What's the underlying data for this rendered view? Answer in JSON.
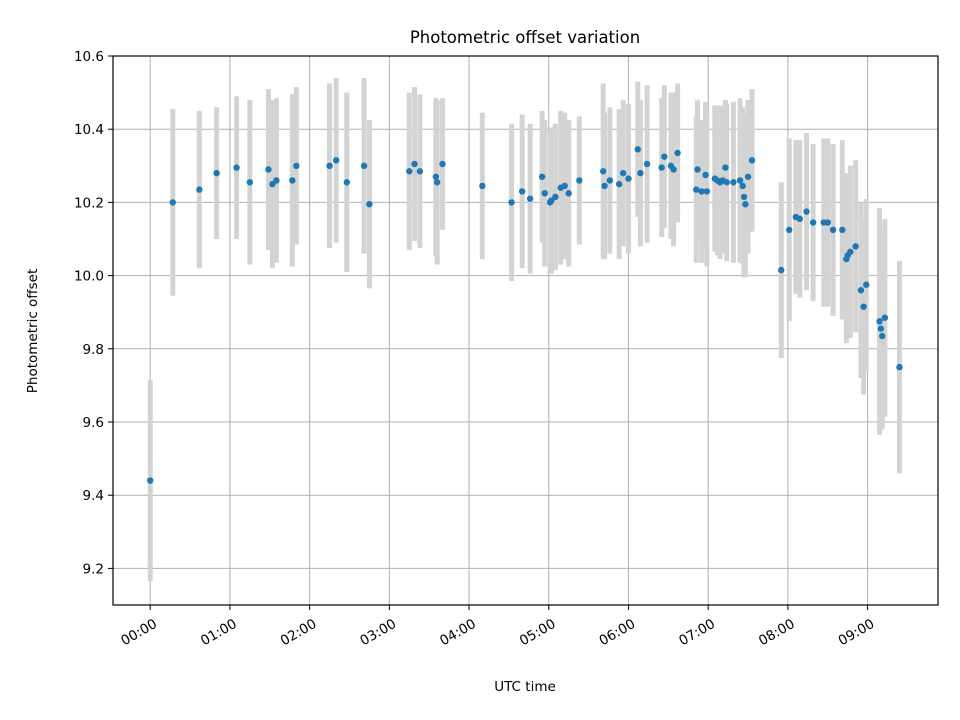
{
  "chart_data": {
    "type": "scatter",
    "title": "Photometric offset variation",
    "xlabel": "UTC time",
    "ylabel": "Photometric offset",
    "xlim": [
      "-00:28",
      "09:53"
    ],
    "ylim": [
      9.1,
      10.6
    ],
    "x_ticks": [
      "00:00",
      "01:00",
      "02:00",
      "03:00",
      "04:00",
      "05:00",
      "06:00",
      "07:00",
      "08:00",
      "09:00"
    ],
    "y_ticks": [
      "9.2",
      "9.4",
      "9.6",
      "9.8",
      "10.0",
      "10.2",
      "10.4",
      "10.6"
    ],
    "grid": true,
    "colors": {
      "points": "#1f77b4",
      "error_bars": "#d3d3d3",
      "grid": "#b0b0b0"
    },
    "x": [
      "00:00",
      "00:17",
      "00:37",
      "00:50",
      "01:05",
      "01:15",
      "01:29",
      "01:32",
      "01:35",
      "01:47",
      "01:50",
      "02:15",
      "02:20",
      "02:28",
      "02:41",
      "02:45",
      "03:15",
      "03:19",
      "03:23",
      "03:35",
      "03:36",
      "03:40",
      "04:10",
      "04:32",
      "04:40",
      "04:46",
      "04:55",
      "04:57",
      "05:01",
      "05:02",
      "05:05",
      "05:09",
      "05:12",
      "05:15",
      "05:23",
      "05:41",
      "05:42",
      "05:46",
      "05:53",
      "05:56",
      "06:00",
      "06:07",
      "06:09",
      "06:14",
      "06:25",
      "06:27",
      "06:32",
      "06:34",
      "06:37",
      "06:51",
      "06:52",
      "06:55",
      "06:58",
      "06:59",
      "07:05",
      "07:07",
      "07:09",
      "07:11",
      "07:13",
      "07:14",
      "07:19",
      "07:24",
      "07:26",
      "07:27",
      "07:28",
      "07:30",
      "07:33",
      "07:55",
      "08:01",
      "08:06",
      "08:09",
      "08:14",
      "08:19",
      "08:27",
      "08:30",
      "08:34",
      "08:41",
      "08:44",
      "08:45",
      "08:47",
      "08:51",
      "08:55",
      "08:57",
      "08:59",
      "09:09",
      "09:10",
      "09:11",
      "09:13",
      "09:24"
    ],
    "values": [
      9.44,
      10.2,
      10.235,
      10.28,
      10.295,
      10.255,
      10.29,
      10.25,
      10.26,
      10.26,
      10.3,
      10.3,
      10.315,
      10.255,
      10.3,
      10.195,
      10.285,
      10.305,
      10.285,
      10.27,
      10.255,
      10.305,
      10.245,
      10.2,
      10.23,
      10.21,
      10.27,
      10.225,
      10.2,
      10.205,
      10.215,
      10.24,
      10.245,
      10.225,
      10.26,
      10.285,
      10.245,
      10.26,
      10.25,
      10.28,
      10.265,
      10.345,
      10.28,
      10.305,
      10.295,
      10.325,
      10.3,
      10.29,
      10.335,
      10.235,
      10.29,
      10.23,
      10.275,
      10.23,
      10.265,
      10.26,
      10.255,
      10.26,
      10.295,
      10.255,
      10.255,
      10.26,
      10.245,
      10.215,
      10.195,
      10.27,
      10.315,
      10.015,
      10.125,
      10.16,
      10.155,
      10.175,
      10.145,
      10.145,
      10.145,
      10.125,
      10.125,
      10.045,
      10.055,
      10.065,
      10.08,
      9.96,
      9.915,
      9.975,
      9.875,
      9.855,
      9.835,
      9.885,
      9.75
    ],
    "errors": [
      0.275,
      0.255,
      0.215,
      0.18,
      0.195,
      0.225,
      0.22,
      0.23,
      0.225,
      0.235,
      0.215,
      0.225,
      0.225,
      0.245,
      0.24,
      0.23,
      0.215,
      0.21,
      0.21,
      0.215,
      0.225,
      0.18,
      0.2,
      0.215,
      0.21,
      0.205,
      0.18,
      0.2,
      0.195,
      0.2,
      0.2,
      0.21,
      0.2,
      0.2,
      0.175,
      0.24,
      0.2,
      0.2,
      0.205,
      0.2,
      0.205,
      0.185,
      0.2,
      0.215,
      0.19,
      0.195,
      0.2,
      0.21,
      0.19,
      0.2,
      0.19,
      0.195,
      0.2,
      0.205,
      0.2,
      0.205,
      0.21,
      0.2,
      0.185,
      0.215,
      0.22,
      0.225,
      0.215,
      0.22,
      0.2,
      0.21,
      0.195,
      0.24,
      0.25,
      0.21,
      0.215,
      0.215,
      0.215,
      0.23,
      0.23,
      0.235,
      0.245,
      0.23,
      0.225,
      0.235,
      0.235,
      0.24,
      0.24,
      0.235,
      0.31,
      0.27,
      0.255,
      0.27,
      0.29
    ]
  }
}
